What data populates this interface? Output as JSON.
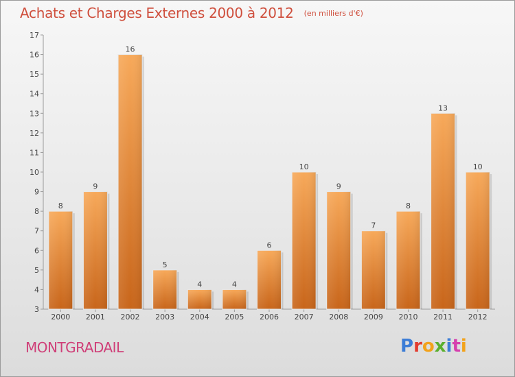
{
  "header": {
    "title": "Achats et Charges Externes 2000 à 2012",
    "subtitle": "(en milliers d'€)"
  },
  "footer": {
    "commune": "MONTGRADAIL",
    "logo": "Proxiti"
  },
  "colors": {
    "title": "#cf4f3d",
    "commune": "#cf3f78",
    "bar_light": "#f7a95a",
    "bar_dark": "#c8651a"
  },
  "chart_data": {
    "type": "bar",
    "title": "Achats et Charges Externes 2000 à 2012",
    "subtitle": "(en milliers d'€)",
    "categories": [
      "2000",
      "2001",
      "2002",
      "2003",
      "2004",
      "2005",
      "2006",
      "2007",
      "2008",
      "2009",
      "2010",
      "2011",
      "2012"
    ],
    "values": [
      8,
      9,
      16,
      5,
      4,
      4,
      6,
      10,
      9,
      7,
      8,
      13,
      10
    ],
    "xlabel": "",
    "ylabel": "",
    "ylim": [
      3,
      17
    ],
    "yticks": [
      3,
      4,
      5,
      6,
      7,
      8,
      9,
      10,
      11,
      12,
      13,
      14,
      15,
      16,
      17
    ],
    "grid": false,
    "legend": "none"
  }
}
